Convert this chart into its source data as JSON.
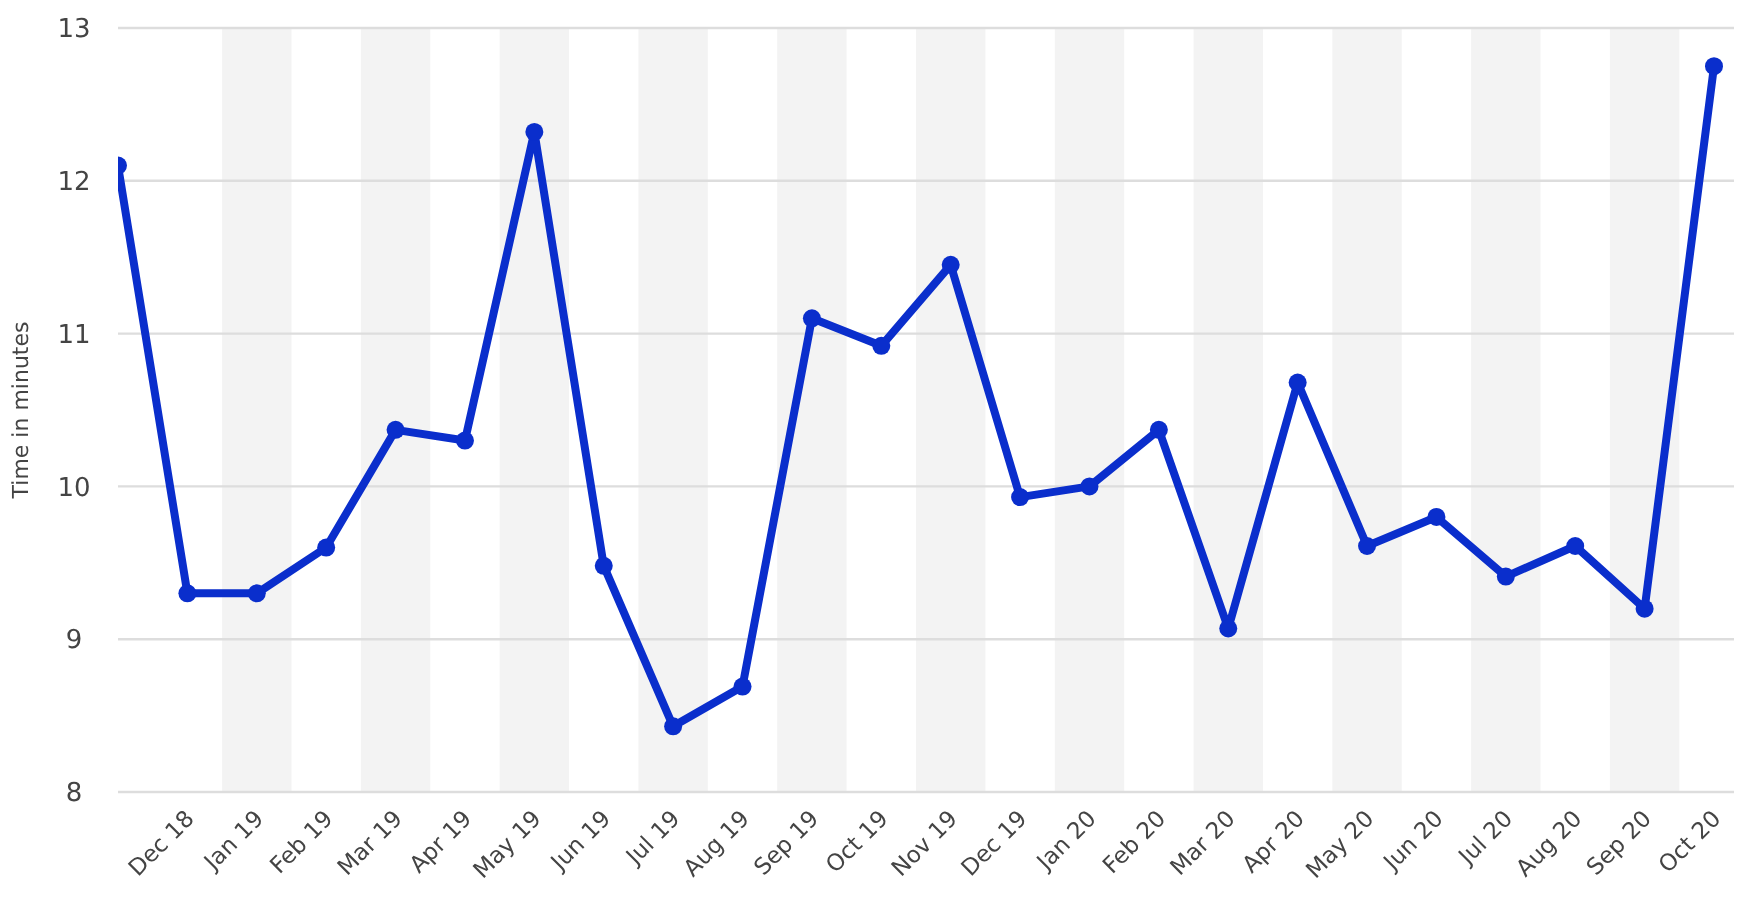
{
  "chart_data": {
    "type": "line",
    "ylabel": "Time in minutes",
    "categories": [
      null,
      "Dec 18",
      "Jan 19",
      "Feb 19",
      "Mar 19",
      "Apr 19",
      "May 19",
      "Jun 19",
      "Jul 19",
      "Aug 19",
      "Sep 19",
      "Oct 19",
      "Nov 19",
      "Dec 19",
      "Jan 20",
      "Feb 20",
      "Mar 20",
      "Apr 20",
      "May 20",
      "Jun 20",
      "Jul 20",
      "Aug 20",
      "Sep 20",
      "Oct 20"
    ],
    "series": [
      {
        "color": "#0a2ecc",
        "values": [
          12.1,
          9.3,
          9.3,
          9.6,
          10.37,
          10.3,
          12.32,
          9.48,
          8.43,
          8.69,
          11.1,
          10.92,
          11.45,
          9.93,
          10.0,
          10.37,
          9.07,
          10.68,
          9.61,
          9.8,
          9.41,
          9.61,
          9.2,
          12.75
        ]
      }
    ],
    "ylim": [
      8,
      13
    ],
    "yticks": [
      8,
      9,
      10,
      11,
      12,
      13
    ],
    "grid": "y",
    "marker": "circle",
    "line_style": "solid"
  }
}
